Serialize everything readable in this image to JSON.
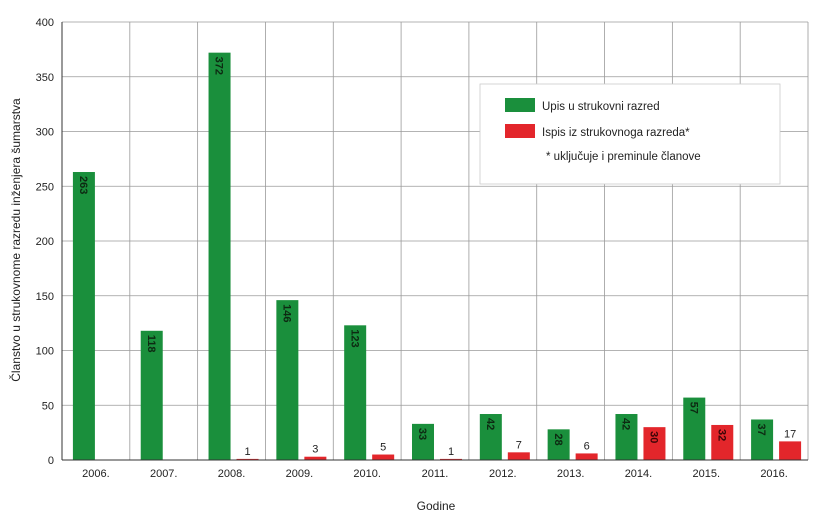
{
  "chart_data": {
    "type": "bar",
    "categories": [
      "2006.",
      "2007.",
      "2008.",
      "2009.",
      "2010.",
      "2011.",
      "2012.",
      "2013.",
      "2014.",
      "2015.",
      "2016."
    ],
    "series": [
      {
        "name": "Upis u strukovni razred",
        "values": [
          263,
          118,
          372,
          146,
          123,
          33,
          42,
          28,
          42,
          57,
          37
        ],
        "color": "#1a8f3c"
      },
      {
        "name": "Ispis iz strukovnoga razreda*",
        "values": [
          0,
          0,
          1,
          3,
          5,
          1,
          7,
          6,
          30,
          32,
          17
        ],
        "color": "#e3262b"
      }
    ],
    "data_labels": [
      [
        "263",
        "118",
        "372",
        "146",
        "123",
        "33",
        "42",
        "28",
        "42",
        "57",
        "37"
      ],
      [
        "",
        "",
        "1",
        "3",
        "5",
        "1",
        "7",
        "6",
        "30",
        "32",
        "17"
      ]
    ],
    "legend_note": "* uključuje i preminule članove",
    "xlabel": "Godine",
    "ylabel": "Članstvo u strukovnome razredu inženjera šumarstva",
    "ylim": [
      0,
      400
    ],
    "yticks": [
      0,
      50,
      100,
      150,
      200,
      250,
      300,
      350,
      400
    ],
    "grid": true,
    "legend_position": "top-right"
  }
}
